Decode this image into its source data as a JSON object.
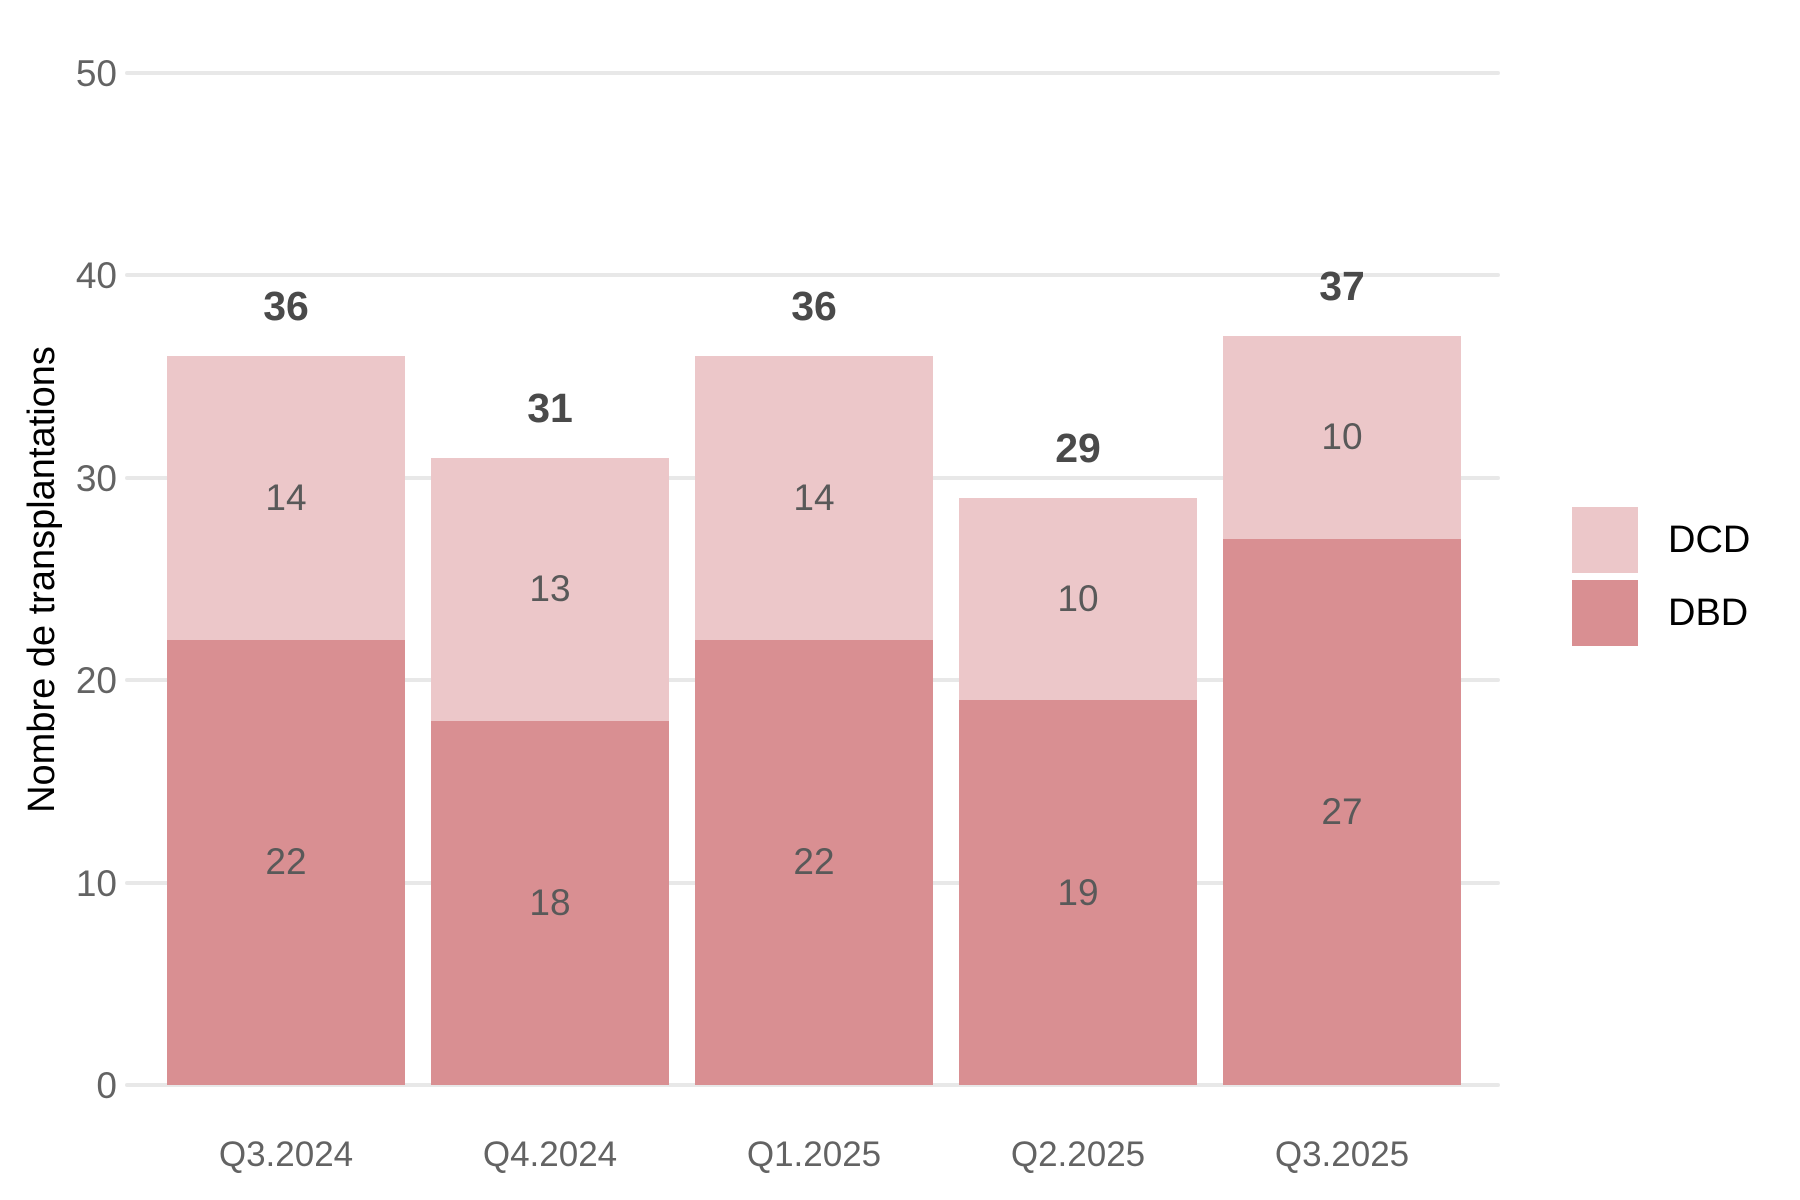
{
  "chart_data": {
    "type": "bar",
    "stacked": true,
    "title": "",
    "xlabel": "",
    "ylabel": "Nombre de transplantations",
    "categories": [
      "Q3.2024",
      "Q4.2024",
      "Q1.2025",
      "Q2.2025",
      "Q3.2025"
    ],
    "series": [
      {
        "name": "DBD",
        "color": "#d98f92",
        "values": [
          22,
          18,
          22,
          19,
          27
        ]
      },
      {
        "name": "DCD",
        "color": "#ecc7c9",
        "values": [
          14,
          13,
          14,
          10,
          10
        ]
      }
    ],
    "totals": [
      36,
      31,
      36,
      29,
      37
    ],
    "ylim": [
      0,
      50
    ],
    "yticks": [
      0,
      10,
      20,
      30,
      40,
      50
    ],
    "grid": "horizontal",
    "legend_position": "right"
  },
  "legend": {
    "items": [
      {
        "label": "DCD",
        "color": "#ecc7c9"
      },
      {
        "label": "DBD",
        "color": "#d98f92"
      }
    ]
  },
  "colors": {
    "gridline": "#e8e8e8",
    "tick_label": "#636363",
    "total_label": "#4a4a4a",
    "segment_label": "#595959",
    "axis_title": "#000000",
    "background": "#ffffff"
  }
}
